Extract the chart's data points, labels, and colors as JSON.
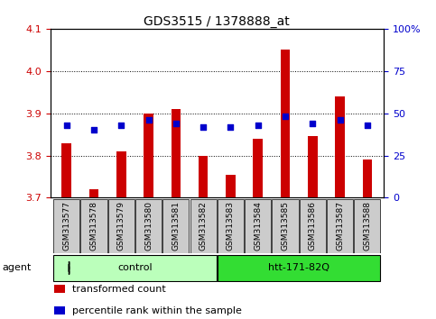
{
  "title": "GDS3515 / 1378888_at",
  "samples": [
    "GSM313577",
    "GSM313578",
    "GSM313579",
    "GSM313580",
    "GSM313581",
    "GSM313582",
    "GSM313583",
    "GSM313584",
    "GSM313585",
    "GSM313586",
    "GSM313587",
    "GSM313588"
  ],
  "transformed_count": [
    3.83,
    3.72,
    3.81,
    3.9,
    3.91,
    3.8,
    3.755,
    3.84,
    4.05,
    3.845,
    3.94,
    3.79
  ],
  "percentile_rank": [
    43,
    40,
    43,
    46,
    44,
    42,
    42,
    43,
    48,
    44,
    46,
    43
  ],
  "ylim_left": [
    3.7,
    4.1
  ],
  "ylim_right": [
    0,
    100
  ],
  "yticks_left": [
    3.7,
    3.8,
    3.9,
    4.0,
    4.1
  ],
  "yticks_right": [
    0,
    25,
    50,
    75,
    100
  ],
  "ytick_labels_right": [
    "0",
    "25",
    "50",
    "75",
    "100%"
  ],
  "bar_color": "#cc0000",
  "dot_color": "#0000cc",
  "groups": [
    {
      "label": "control",
      "indices": [
        0,
        1,
        2,
        3,
        4,
        5
      ],
      "color": "#bbffbb",
      "color_border": "#000000"
    },
    {
      "label": "htt-171-82Q",
      "indices": [
        6,
        7,
        8,
        9,
        10,
        11
      ],
      "color": "#33dd33",
      "color_border": "#000000"
    }
  ],
  "agent_label": "agent",
  "legend_bar_label": "transformed count",
  "legend_dot_label": "percentile rank within the sample",
  "bar_width": 0.35,
  "tick_label_color_left": "#cc0000",
  "tick_label_color_right": "#0000cc",
  "background_color": "#ffffff",
  "xticklabel_bg": "#cccccc"
}
